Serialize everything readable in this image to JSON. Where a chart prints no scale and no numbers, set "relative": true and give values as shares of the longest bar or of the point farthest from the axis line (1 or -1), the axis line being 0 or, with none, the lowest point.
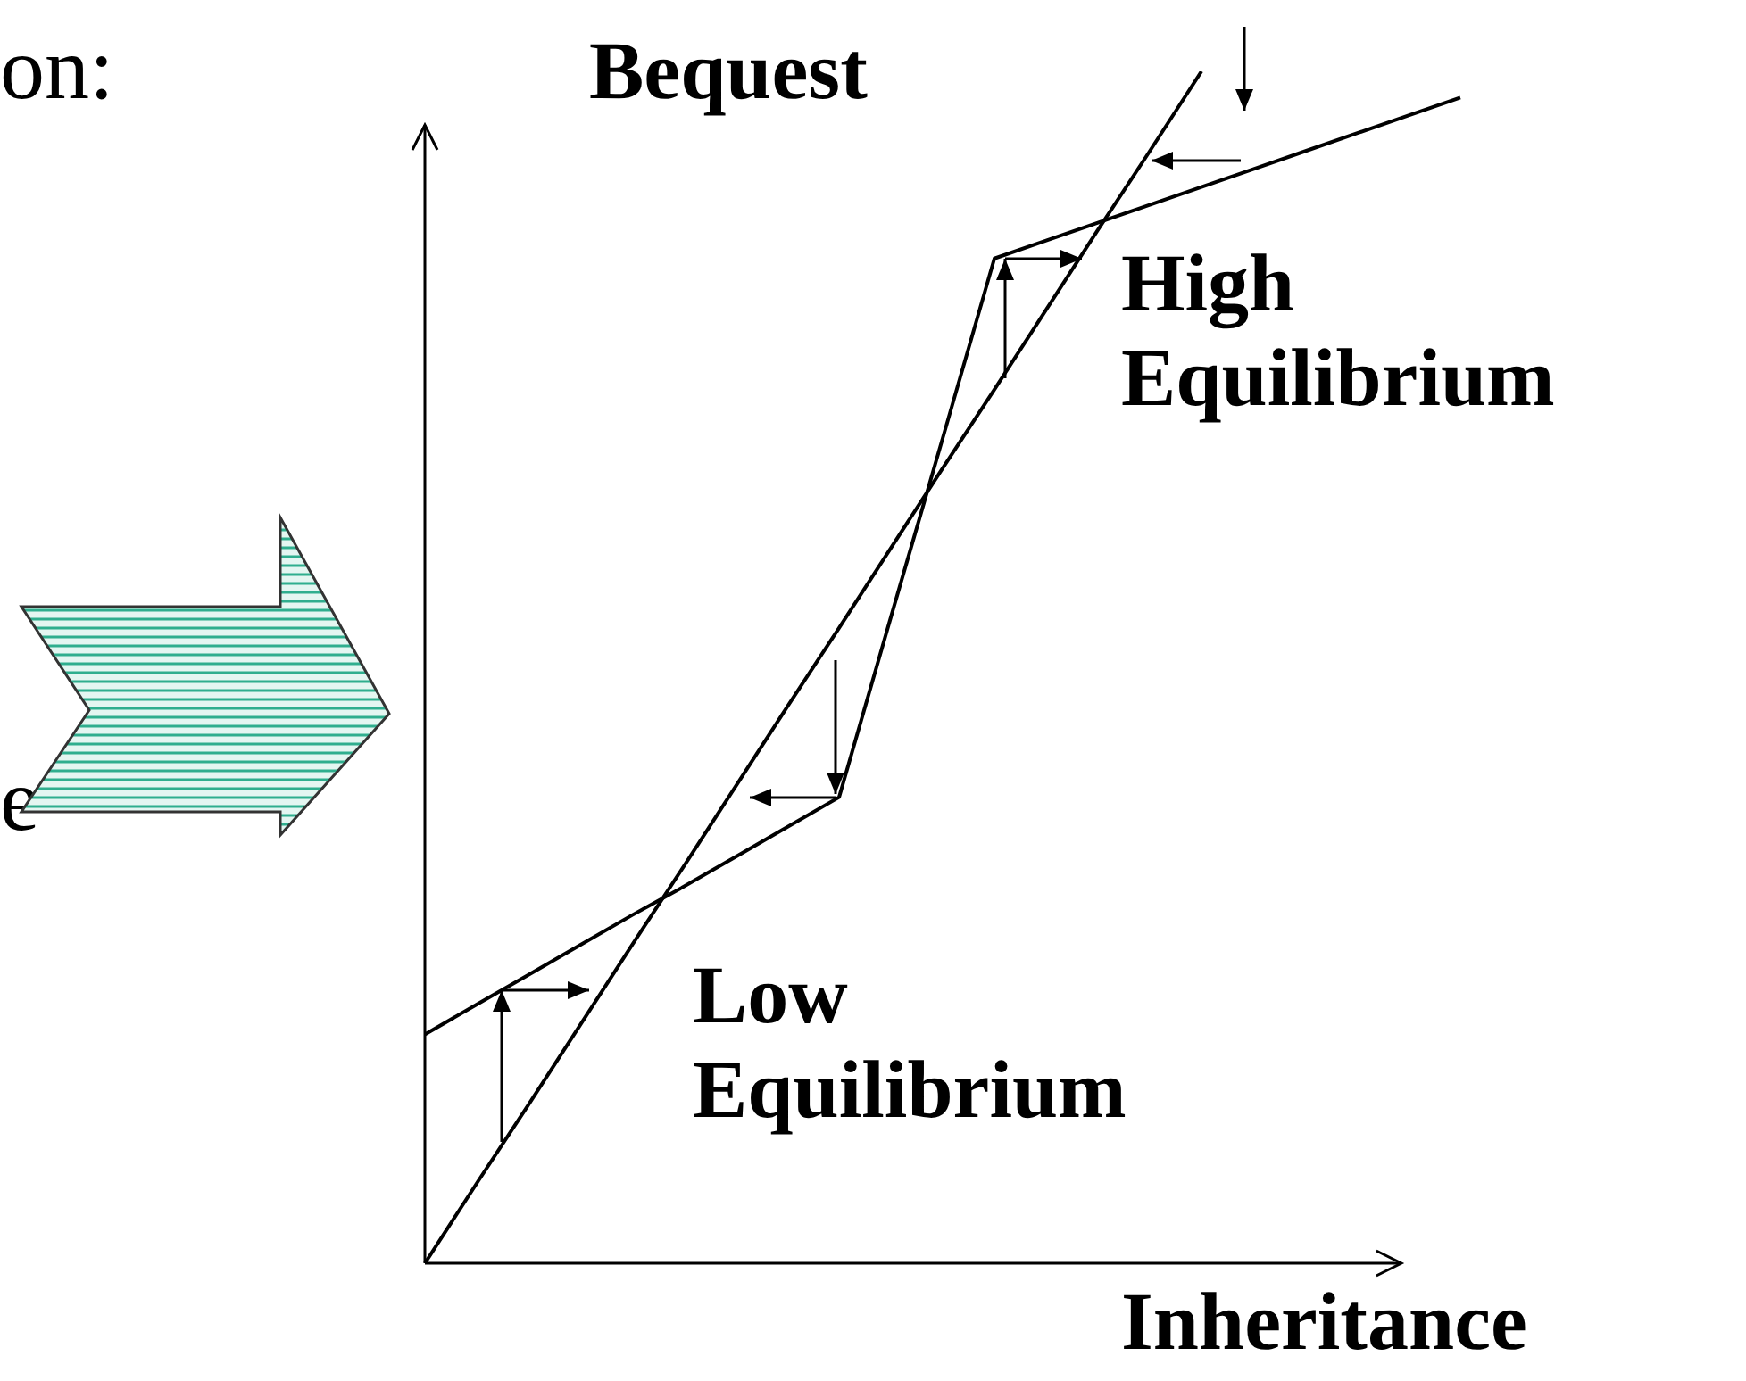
{
  "chart_data": {
    "type": "line",
    "relative": true,
    "xlabel": "Inheritance",
    "ylabel": "Bequest",
    "legend": false,
    "marker": "none",
    "categories": [
      null,
      null,
      null,
      null,
      null,
      null,
      null,
      null,
      null,
      null,
      null,
      null,
      null,
      null,
      null,
      null,
      null,
      null,
      null,
      null,
      null
    ],
    "series": [
      {
        "color": "#000000",
        "values": [
          0,
          0.067,
          0.133,
          0.2,
          0.267,
          0.333,
          0.4,
          0.467,
          0.533,
          0.6,
          0.667,
          0.733,
          0.8,
          0.867,
          0.933,
          1,
          null,
          null,
          null,
          null,
          null
        ]
      },
      {
        "color": "#000000",
        "values": [
          0.192,
          0.217,
          0.242,
          0.267,
          0.292,
          0.316,
          0.341,
          0.366,
          0.391,
          0.542,
          0.692,
          0.843,
          0.858,
          0.873,
          0.888,
          0.903,
          0.918,
          0.933,
          0.948,
          0.963,
          0.978
        ]
      }
    ],
    "annotations": [
      "High Equilibrium",
      "Low Equilibrium",
      "on:",
      "e"
    ]
  }
}
